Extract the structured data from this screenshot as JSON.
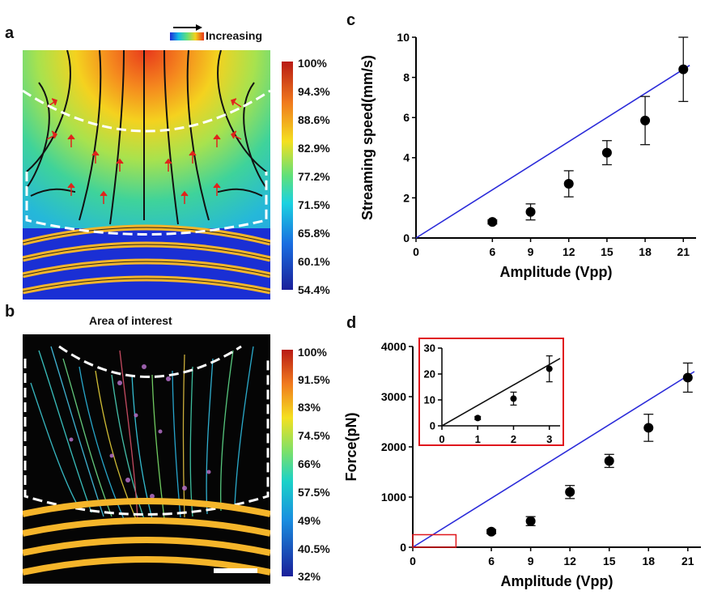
{
  "panel_a": {
    "label": "a",
    "legend_text": "Increasing",
    "colorbar_ticks": [
      "100%",
      "94.3%",
      "88.6%",
      "82.9%",
      "77.2%",
      "71.5%",
      "65.8%",
      "60.1%",
      "54.4%"
    ]
  },
  "panel_b": {
    "label": "b",
    "title": "Area of interest",
    "colorbar_ticks": [
      "100%",
      "91.5%",
      "83%",
      "74.5%",
      "66%",
      "57.5%",
      "49%",
      "40.5%",
      "32%"
    ]
  },
  "panel_c": {
    "label": "c"
  },
  "panel_d": {
    "label": "d"
  },
  "chart_data": [
    {
      "type": "scatter",
      "xlabel": "Amplitude (Vpp)",
      "ylabel": "Streaming speed(mm/s)",
      "xlim": [
        0,
        22
      ],
      "ylim": [
        0,
        10
      ],
      "xticks": [
        0,
        6,
        9,
        12,
        15,
        18,
        21
      ],
      "yticks": [
        0,
        2,
        4,
        6,
        8,
        10
      ],
      "points": [
        {
          "x": 6,
          "y": 0.8,
          "err": 0.1
        },
        {
          "x": 9,
          "y": 1.3,
          "err": 0.4
        },
        {
          "x": 12,
          "y": 2.7,
          "err": 0.65
        },
        {
          "x": 15,
          "y": 4.25,
          "err": 0.6
        },
        {
          "x": 18,
          "y": 5.85,
          "err": 1.2
        },
        {
          "x": 21,
          "y": 8.4,
          "err": 1.6
        }
      ],
      "fit_line": {
        "x": [
          0,
          21.5
        ],
        "y": [
          0,
          8.6
        ],
        "color": "#2b2bd9"
      }
    },
    {
      "type": "scatter",
      "xlabel": "Amplitude (Vpp)",
      "ylabel": "Force(pN)",
      "xlim": [
        0,
        22
      ],
      "ylim": [
        0,
        4000
      ],
      "xticks": [
        0,
        6,
        9,
        12,
        15,
        18,
        21
      ],
      "yticks": [
        0,
        1000,
        2000,
        3000,
        4000
      ],
      "points": [
        {
          "x": 6,
          "y": 310,
          "err": 40
        },
        {
          "x": 9,
          "y": 520,
          "err": 90
        },
        {
          "x": 12,
          "y": 1100,
          "err": 130
        },
        {
          "x": 15,
          "y": 1720,
          "err": 130
        },
        {
          "x": 18,
          "y": 2380,
          "err": 270
        },
        {
          "x": 21,
          "y": 3380,
          "err": 290
        }
      ],
      "fit_line": {
        "x": [
          0,
          21.5
        ],
        "y": [
          0,
          3500
        ],
        "color": "#2b2bd9"
      },
      "inset": {
        "xlim": [
          0,
          3.3
        ],
        "ylim": [
          0,
          30
        ],
        "xticks": [
          0,
          1,
          2,
          3
        ],
        "yticks": [
          0,
          10,
          20,
          30
        ],
        "points": [
          {
            "x": 1,
            "y": 3,
            "err": 0.6
          },
          {
            "x": 2,
            "y": 10.5,
            "err": 2.5
          },
          {
            "x": 3,
            "y": 22,
            "err": 5
          }
        ],
        "fit_line": {
          "x": [
            0,
            3.3
          ],
          "y": [
            0,
            26
          ]
        }
      }
    }
  ]
}
